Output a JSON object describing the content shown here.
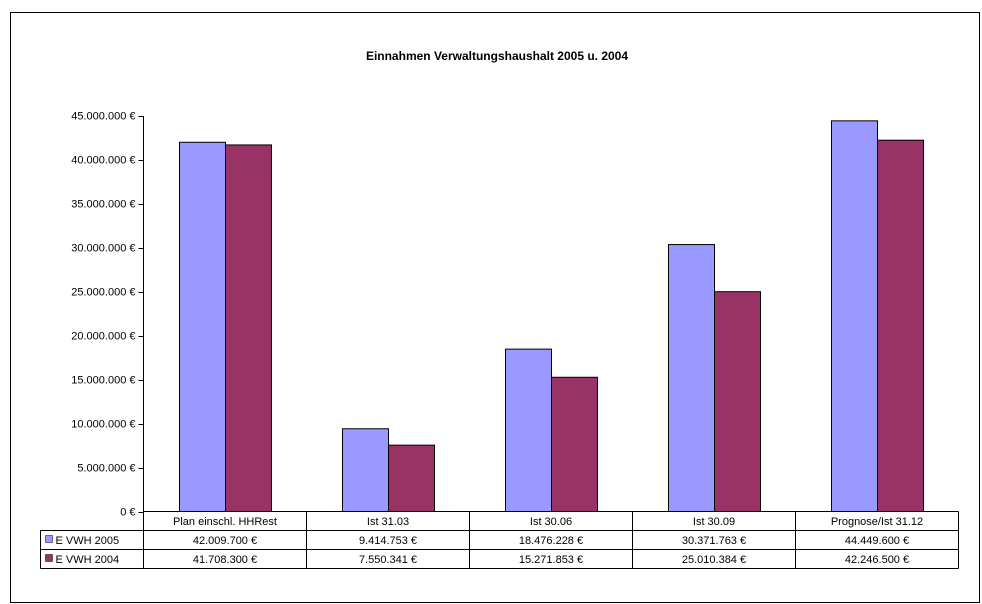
{
  "chart_data": {
    "type": "bar",
    "title": "Einnahmen Verwaltungshaushalt 2005 u. 2004",
    "categories": [
      "Plan einschl. HHRest",
      "Ist 31.03",
      "Ist 30.06",
      "Ist 30.09",
      "Prognose/Ist 31.12"
    ],
    "series": [
      {
        "name": "E VWH 2005",
        "color": "#9999ff",
        "values": [
          42009700,
          9414753,
          18476228,
          30371763,
          44449600
        ],
        "value_labels": [
          "42.009.700 €",
          "9.414.753 €",
          "18.476.228 €",
          "30.371.763 €",
          "44.449.600 €"
        ]
      },
      {
        "name": "E VWH 2004",
        "color": "#993366",
        "values": [
          41708300,
          7550341,
          15271853,
          25010384,
          42246500
        ],
        "value_labels": [
          "41.708.300 €",
          "7.550.341 €",
          "15.271.853 €",
          "25.010.384 €",
          "42.246.500 €"
        ]
      }
    ],
    "ylim": [
      0,
      45000000
    ],
    "yticks": [
      {
        "value": 0,
        "label": "0 €"
      },
      {
        "value": 5000000,
        "label": "5.000.000 €"
      },
      {
        "value": 10000000,
        "label": "10.000.000 €"
      },
      {
        "value": 15000000,
        "label": "15.000.000 €"
      },
      {
        "value": 20000000,
        "label": "20.000.000 €"
      },
      {
        "value": 25000000,
        "label": "25.000.000 €"
      },
      {
        "value": 30000000,
        "label": "30.000.000 €"
      },
      {
        "value": 35000000,
        "label": "35.000.000 €"
      },
      {
        "value": 40000000,
        "label": "40.000.000 €"
      },
      {
        "value": 45000000,
        "label": "45.000.000 €"
      }
    ]
  }
}
